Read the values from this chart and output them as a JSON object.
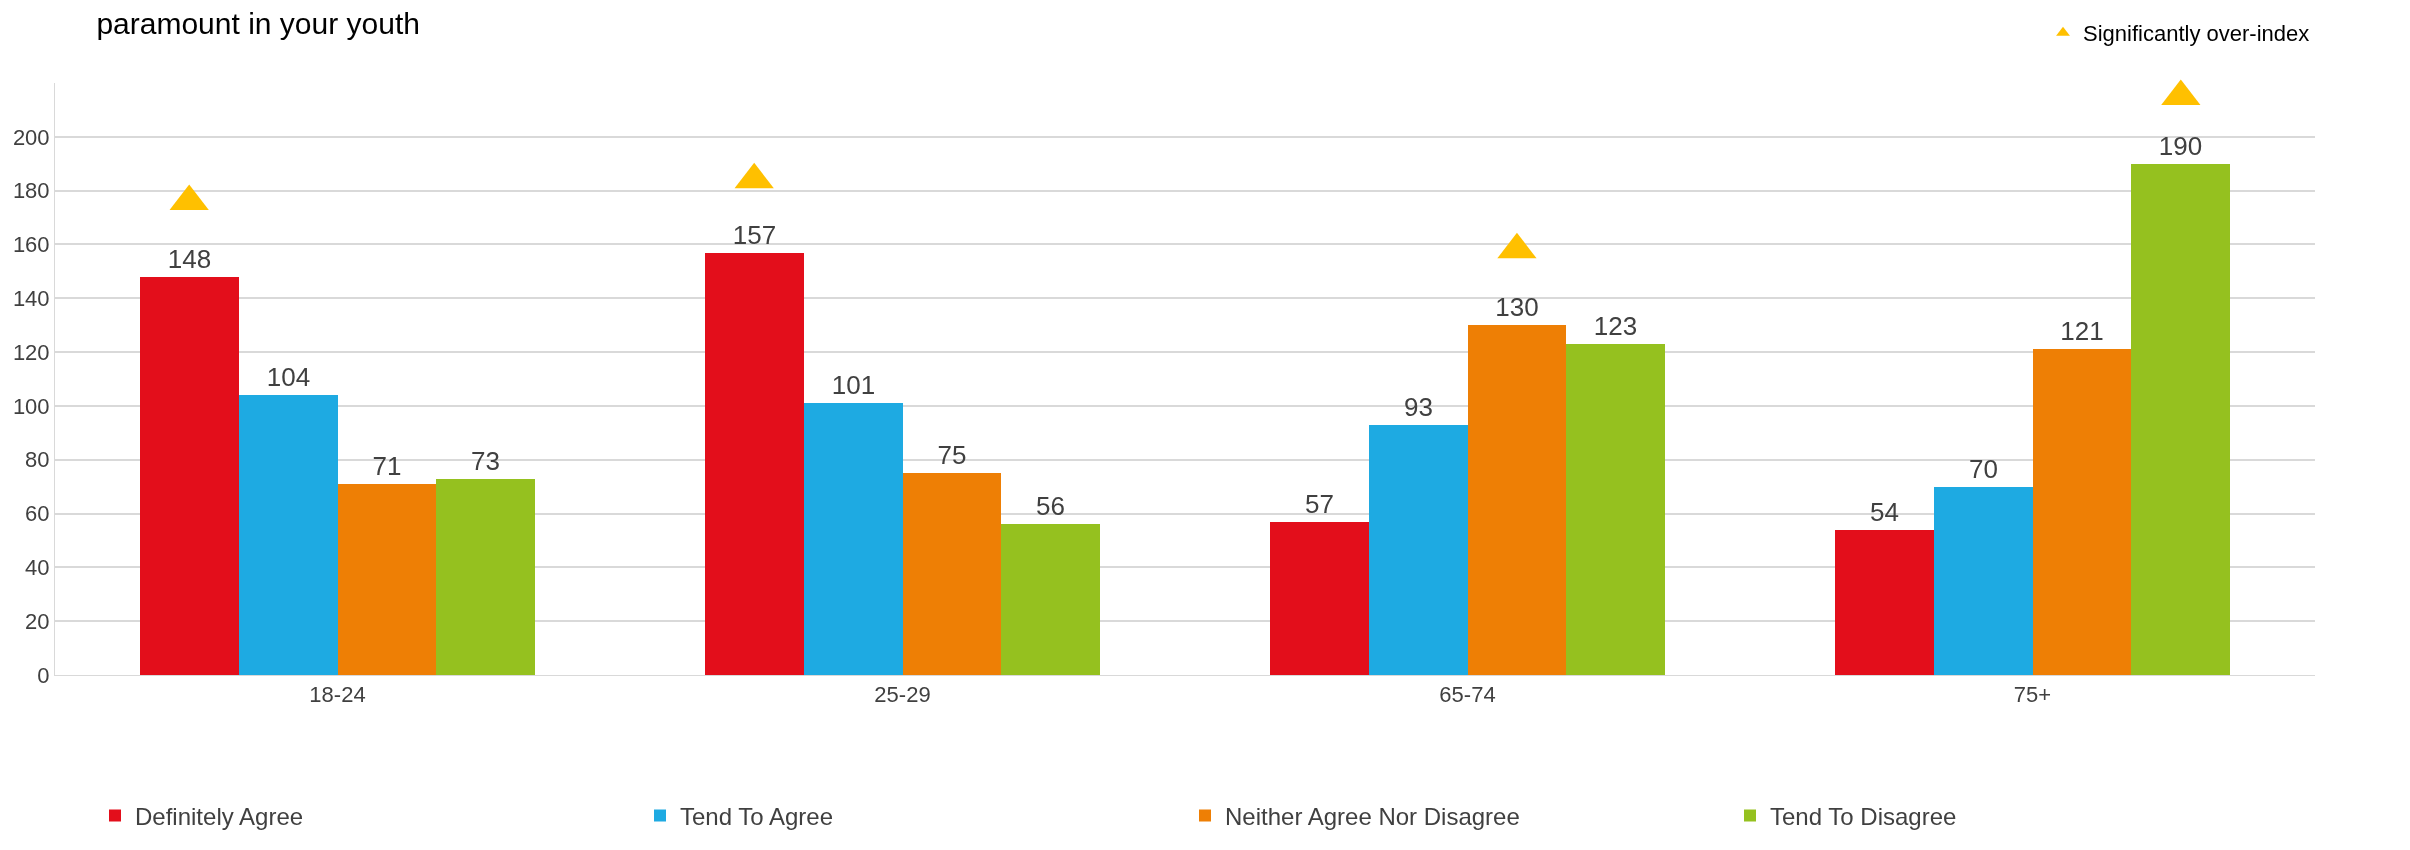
{
  "chart_data": {
    "type": "bar",
    "title": "paramount in your youth",
    "categories": [
      "18-24",
      "25-29",
      "65-74",
      "75+"
    ],
    "series": [
      {
        "name": "Definitely Agree",
        "color": "#e30e1b",
        "values": [
          148,
          157,
          57,
          54
        ],
        "value_labels": [
          "148",
          "157",
          "57",
          "54"
        ]
      },
      {
        "name": "Tend To Agree",
        "color": "#1eaae2",
        "values": [
          104,
          101,
          93,
          70
        ],
        "value_labels": [
          "104",
          "101",
          "93",
          "70"
        ]
      },
      {
        "name": "Neither Agree Nor Disagree",
        "color": "#ee7f05",
        "values": [
          71,
          75,
          130,
          121
        ],
        "value_labels": [
          "71",
          "75",
          "130",
          "121"
        ]
      },
      {
        "name": "Tend To Disagree",
        "color": "#95c11f",
        "values": [
          73,
          56,
          123,
          190
        ],
        "value_labels": [
          "73",
          "56",
          "123",
          "190"
        ]
      },
      {
        "name": "Significantly over-index",
        "type": "scatter",
        "marker": "triangle",
        "color": "#ffc000",
        "values": [
          176,
          184,
          158,
          215
        ]
      }
    ],
    "ylim": [
      0,
      220
    ],
    "yticks": [
      0,
      20,
      40,
      60,
      80,
      100,
      120,
      140,
      160,
      180,
      200
    ],
    "grid": "y",
    "legend": "bottom"
  }
}
